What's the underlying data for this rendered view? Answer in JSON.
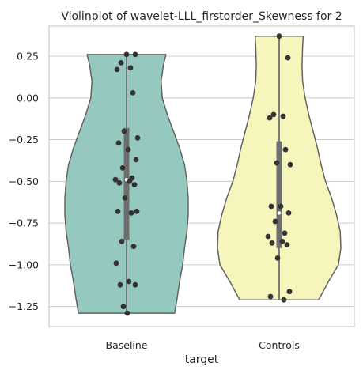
{
  "chart_data": {
    "type": "violin",
    "title": "Violinplot of wavelet-LLL_firstorder_Skewness for 2",
    "xlabel": "target",
    "ylabel": "",
    "categories": [
      "Baseline",
      "Controls"
    ],
    "ylim": [
      -1.37,
      0.43
    ],
    "yticks": [
      0.25,
      0.0,
      -0.25,
      -0.5,
      -0.75,
      -1.0,
      -1.25
    ],
    "ytick_labels": [
      "0.25",
      "0.00",
      "−0.25",
      "−0.50",
      "−0.75",
      "−1.00",
      "−1.25"
    ],
    "grid": true,
    "colors": {
      "Baseline": "#95c9c0",
      "Controls": "#f6f6bc",
      "outline": "#636363",
      "box": "#6e6e6e",
      "points": "#333333"
    },
    "series": [
      {
        "category": "Baseline",
        "min": -1.29,
        "max": 0.26,
        "q1": -0.85,
        "median": -0.49,
        "q3": -0.18,
        "points": [
          0.26,
          0.26,
          0.21,
          0.18,
          0.17,
          0.03,
          -0.2,
          -0.24,
          -0.27,
          -0.31,
          -0.37,
          -0.42,
          -0.48,
          -0.49,
          -0.5,
          -0.51,
          -0.52,
          -0.6,
          -0.68,
          -0.68,
          -0.69,
          -0.86,
          -0.89,
          -0.99,
          -1.1,
          -1.12,
          -1.12,
          -1.25,
          -1.29
        ]
      },
      {
        "category": "Controls",
        "min": -1.21,
        "max": 0.37,
        "q1": -0.9,
        "median": -0.69,
        "q3": -0.26,
        "points": [
          0.37,
          0.24,
          -0.1,
          -0.11,
          -0.12,
          -0.31,
          -0.39,
          -0.4,
          -0.65,
          -0.65,
          -0.69,
          -0.74,
          -0.81,
          -0.83,
          -0.86,
          -0.87,
          -0.88,
          -0.96,
          -1.16,
          -1.19,
          -1.21
        ]
      }
    ],
    "violin_density": {
      "Baseline": [
        [
          -1.29,
          0.78
        ],
        [
          -1.2,
          0.82
        ],
        [
          -1.1,
          0.86
        ],
        [
          -1.0,
          0.91
        ],
        [
          -0.9,
          0.94
        ],
        [
          -0.8,
          0.98
        ],
        [
          -0.7,
          1.0
        ],
        [
          -0.6,
          1.0
        ],
        [
          -0.5,
          0.98
        ],
        [
          -0.4,
          0.94
        ],
        [
          -0.3,
          0.86
        ],
        [
          -0.2,
          0.76
        ],
        [
          -0.1,
          0.66
        ],
        [
          0.0,
          0.58
        ],
        [
          0.1,
          0.56
        ],
        [
          0.2,
          0.6
        ],
        [
          0.26,
          0.64
        ]
      ],
      "Controls": [
        [
          -1.21,
          0.64
        ],
        [
          -1.1,
          0.8
        ],
        [
          -1.0,
          0.96
        ],
        [
          -0.9,
          1.0
        ],
        [
          -0.8,
          0.99
        ],
        [
          -0.7,
          0.93
        ],
        [
          -0.6,
          0.85
        ],
        [
          -0.5,
          0.75
        ],
        [
          -0.4,
          0.68
        ],
        [
          -0.3,
          0.62
        ],
        [
          -0.2,
          0.55
        ],
        [
          -0.1,
          0.48
        ],
        [
          0.0,
          0.42
        ],
        [
          0.1,
          0.38
        ],
        [
          0.2,
          0.37
        ],
        [
          0.3,
          0.38
        ],
        [
          0.37,
          0.39
        ]
      ]
    }
  }
}
